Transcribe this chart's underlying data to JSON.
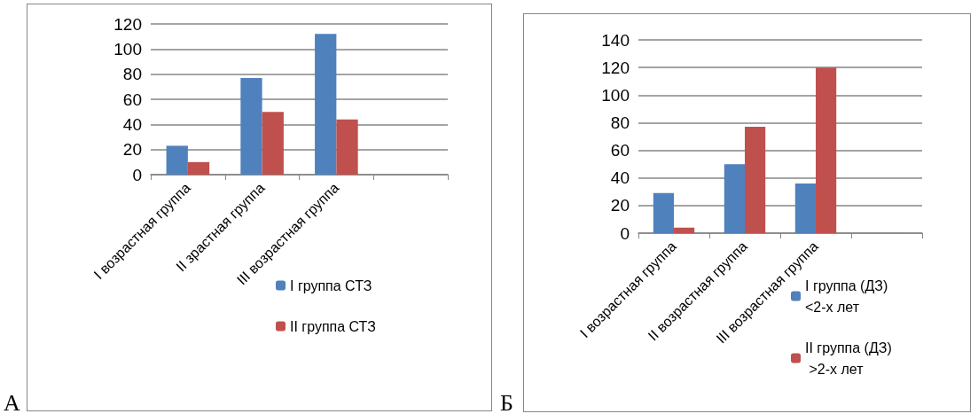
{
  "chart_data": [
    {
      "type": "bar",
      "categories": [
        "I возрастная группа",
        "II зрастная группа",
        "III возрастная группа",
        null
      ],
      "series": [
        {
          "name": "I группа СТЗ",
          "color": "#4f81bd",
          "values": [
            23,
            77,
            112,
            null
          ]
        },
        {
          "name": "II группа СТЗ",
          "color": "#c0504d",
          "values": [
            10,
            50,
            44,
            null
          ]
        }
      ],
      "ylim": [
        0,
        120
      ],
      "yticks": [
        0,
        20,
        40,
        60,
        80,
        100,
        120
      ],
      "grid": "y",
      "legend": "bottom right",
      "annotations": [
        "А"
      ]
    },
    {
      "type": "bar",
      "categories": [
        "I возрастная группа",
        "II возрастная группа",
        "III возрастная группа",
        null
      ],
      "series": [
        {
          "name": "I группа (ДЗ) <2-х лет",
          "color": "#4f81bd",
          "values": [
            29,
            50,
            36,
            null
          ]
        },
        {
          "name": "II группа (ДЗ) >2-х лет",
          "color": "#c0504d",
          "values": [
            4,
            77,
            120,
            null
          ]
        }
      ],
      "ylim": [
        0,
        140
      ],
      "yticks": [
        0,
        20,
        40,
        60,
        80,
        100,
        120,
        140
      ],
      "grid": "y",
      "legend": "bottom right",
      "annotations": [
        "Б"
      ]
    }
  ]
}
